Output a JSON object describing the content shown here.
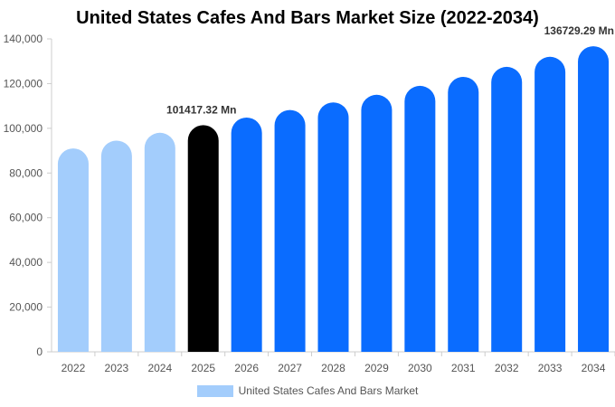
{
  "chart_data": {
    "type": "bar",
    "title": "United States Cafes And Bars Market Size (2022-2034)",
    "categories": [
      "2022",
      "2023",
      "2024",
      "2025",
      "2026",
      "2027",
      "2028",
      "2029",
      "2030",
      "2031",
      "2032",
      "2033",
      "2034"
    ],
    "series": [
      {
        "name": "United States Cafes And Bars Market",
        "values": [
          91000,
          94500,
          98000,
          101417.32,
          104800,
          108200,
          111600,
          115000,
          119000,
          123000,
          127500,
          132000,
          136729.29
        ]
      }
    ],
    "yticks": [
      "0",
      "20,000",
      "40,000",
      "60,000",
      "80,000",
      "100,000",
      "120,000",
      "140,000"
    ],
    "ylim": [
      0,
      140000
    ],
    "data_labels": [
      {
        "category": "2025",
        "text": "101417.32 Mn"
      },
      {
        "category": "2034",
        "text": "136729.29 Mn"
      }
    ],
    "colors": {
      "historical": "#a3cdfc",
      "current": "#000000",
      "forecast": "#0a6cff",
      "axis_text": "#555555",
      "axis_line": "#cccccc"
    },
    "bar_roles": [
      "historical",
      "historical",
      "historical",
      "current",
      "forecast",
      "forecast",
      "forecast",
      "forecast",
      "forecast",
      "forecast",
      "forecast",
      "forecast",
      "forecast"
    ],
    "legend": {
      "position": "bottom"
    },
    "grid": false
  }
}
